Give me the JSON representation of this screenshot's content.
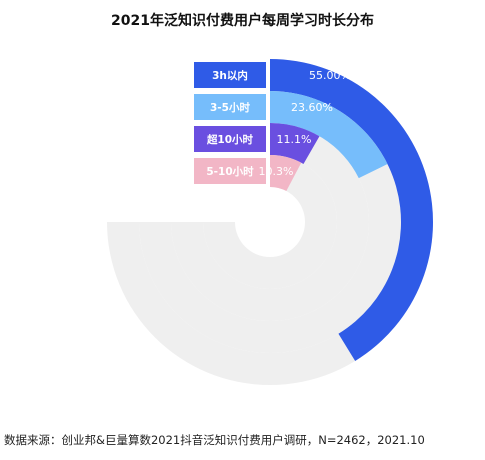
{
  "chart_data": {
    "type": "radial-bar",
    "title": "2021年泛知识付费用户每周学习时长分布",
    "categories": [
      "3h以内",
      "3-5小时",
      "超10小时",
      "5-10小时"
    ],
    "values": [
      55.0,
      23.6,
      11.1,
      10.3
    ],
    "value_labels": [
      "55.00%",
      "23.60%",
      "11.1%",
      "10.3%"
    ],
    "unit": "%",
    "max": 100,
    "colors": [
      "#2f5be7",
      "#76bdfb",
      "#6a4fe0",
      "#f2b6c6"
    ],
    "track_color": "#efefef"
  },
  "source": "数据来源：创业邦&巨量算数2021抖音泛知识付费用户调研，N=2462，2021.10"
}
